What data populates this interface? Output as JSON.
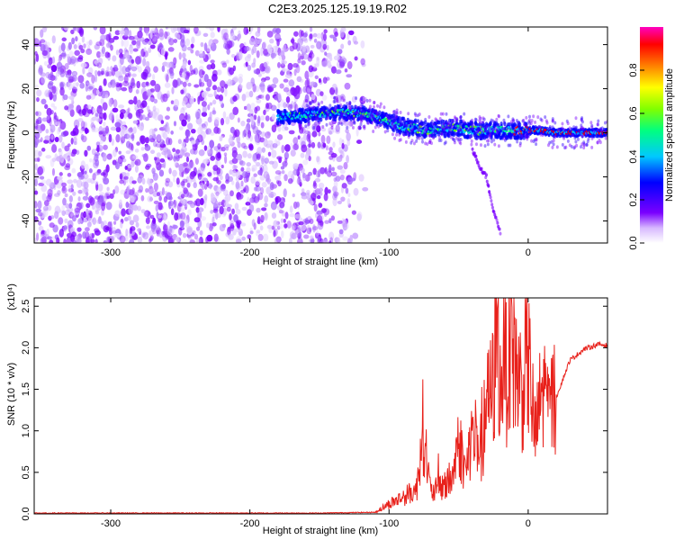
{
  "figure_title": "C2E3.2025.125.19.19.R02",
  "chart_data": [
    {
      "type": "heatmap",
      "title": "",
      "xlabel": "Height of straight line (km)",
      "ylabel": "Frequency (Hz)",
      "xlim": [
        -355,
        57
      ],
      "ylim": [
        -50,
        48
      ],
      "xticks": [
        -300,
        -200,
        -100,
        0
      ],
      "yticks": [
        -40,
        -20,
        0,
        20,
        40
      ],
      "colorbar": {
        "label": "Normalized spectral amplitude",
        "range": [
          0,
          1
        ],
        "ticks": [
          "0.0",
          "0.2",
          "0.4",
          "0.6",
          "0.8"
        ],
        "tick_values": [
          0.0,
          0.2,
          0.4,
          0.6,
          0.8
        ],
        "colormap": [
          "#ffffff",
          "#7a00ff",
          "#0000ff",
          "#00c8ff",
          "#00ff80",
          "#80ff00",
          "#ffff00",
          "#ff8000",
          "#ff0000",
          "#ff00c0"
        ]
      },
      "signal_track": {
        "x": [
          -180,
          -160,
          -140,
          -120,
          -100,
          -90,
          -80,
          -70,
          -60,
          -50,
          -40,
          -30,
          -20,
          -10,
          0,
          10,
          20,
          30,
          40,
          50,
          57
        ],
        "frequency_hz": [
          7,
          8,
          9,
          9,
          5,
          3,
          2,
          1,
          2,
          2,
          1,
          1,
          1,
          1,
          1,
          1,
          0,
          0,
          0,
          0,
          0
        ]
      },
      "noise_region_x": [
        -355,
        -125
      ],
      "secondary_branch": {
        "x": [
          -40,
          -35,
          -30,
          -25,
          -20
        ],
        "frequency_hz": [
          -8,
          -15,
          -20,
          -35,
          -45
        ]
      }
    },
    {
      "type": "line",
      "title": "",
      "xlabel": "Height of straight line (km)",
      "ylabel": "SNR (10 * v/v)",
      "y_multiplier_label": "(x10⁴)",
      "xlim": [
        -355,
        57
      ],
      "ylim": [
        0,
        2.6
      ],
      "xticks": [
        -300,
        -200,
        -100,
        0
      ],
      "yticks": [
        "0.0",
        "0.5",
        "1.0",
        "1.5",
        "2.0",
        "2.5"
      ],
      "ytick_values": [
        0.0,
        0.5,
        1.0,
        1.5,
        2.0,
        2.5
      ],
      "series": [
        {
          "color": "#e8201a",
          "x": [
            -355,
            -300,
            -250,
            -200,
            -150,
            -110,
            -100,
            -90,
            -80,
            -76,
            -70,
            -60,
            -55,
            -50,
            -45,
            -40,
            -35,
            -30,
            -25,
            -22,
            -20,
            -18,
            -15,
            -12,
            -10,
            -5,
            0,
            5,
            10,
            15,
            20,
            30,
            40,
            50,
            57
          ],
          "values": [
            0.01,
            0.01,
            0.01,
            0.01,
            0.01,
            0.02,
            0.12,
            0.2,
            0.3,
            1.1,
            0.25,
            0.35,
            0.4,
            0.9,
            0.5,
            1.0,
            0.6,
            1.3,
            1.5,
            2.5,
            1.4,
            2.1,
            1.7,
            2.6,
            1.9,
            1.5,
            1.9,
            0.9,
            1.5,
            1.3,
            1.4,
            1.85,
            1.98,
            2.04,
            2.03
          ]
        }
      ]
    }
  ]
}
